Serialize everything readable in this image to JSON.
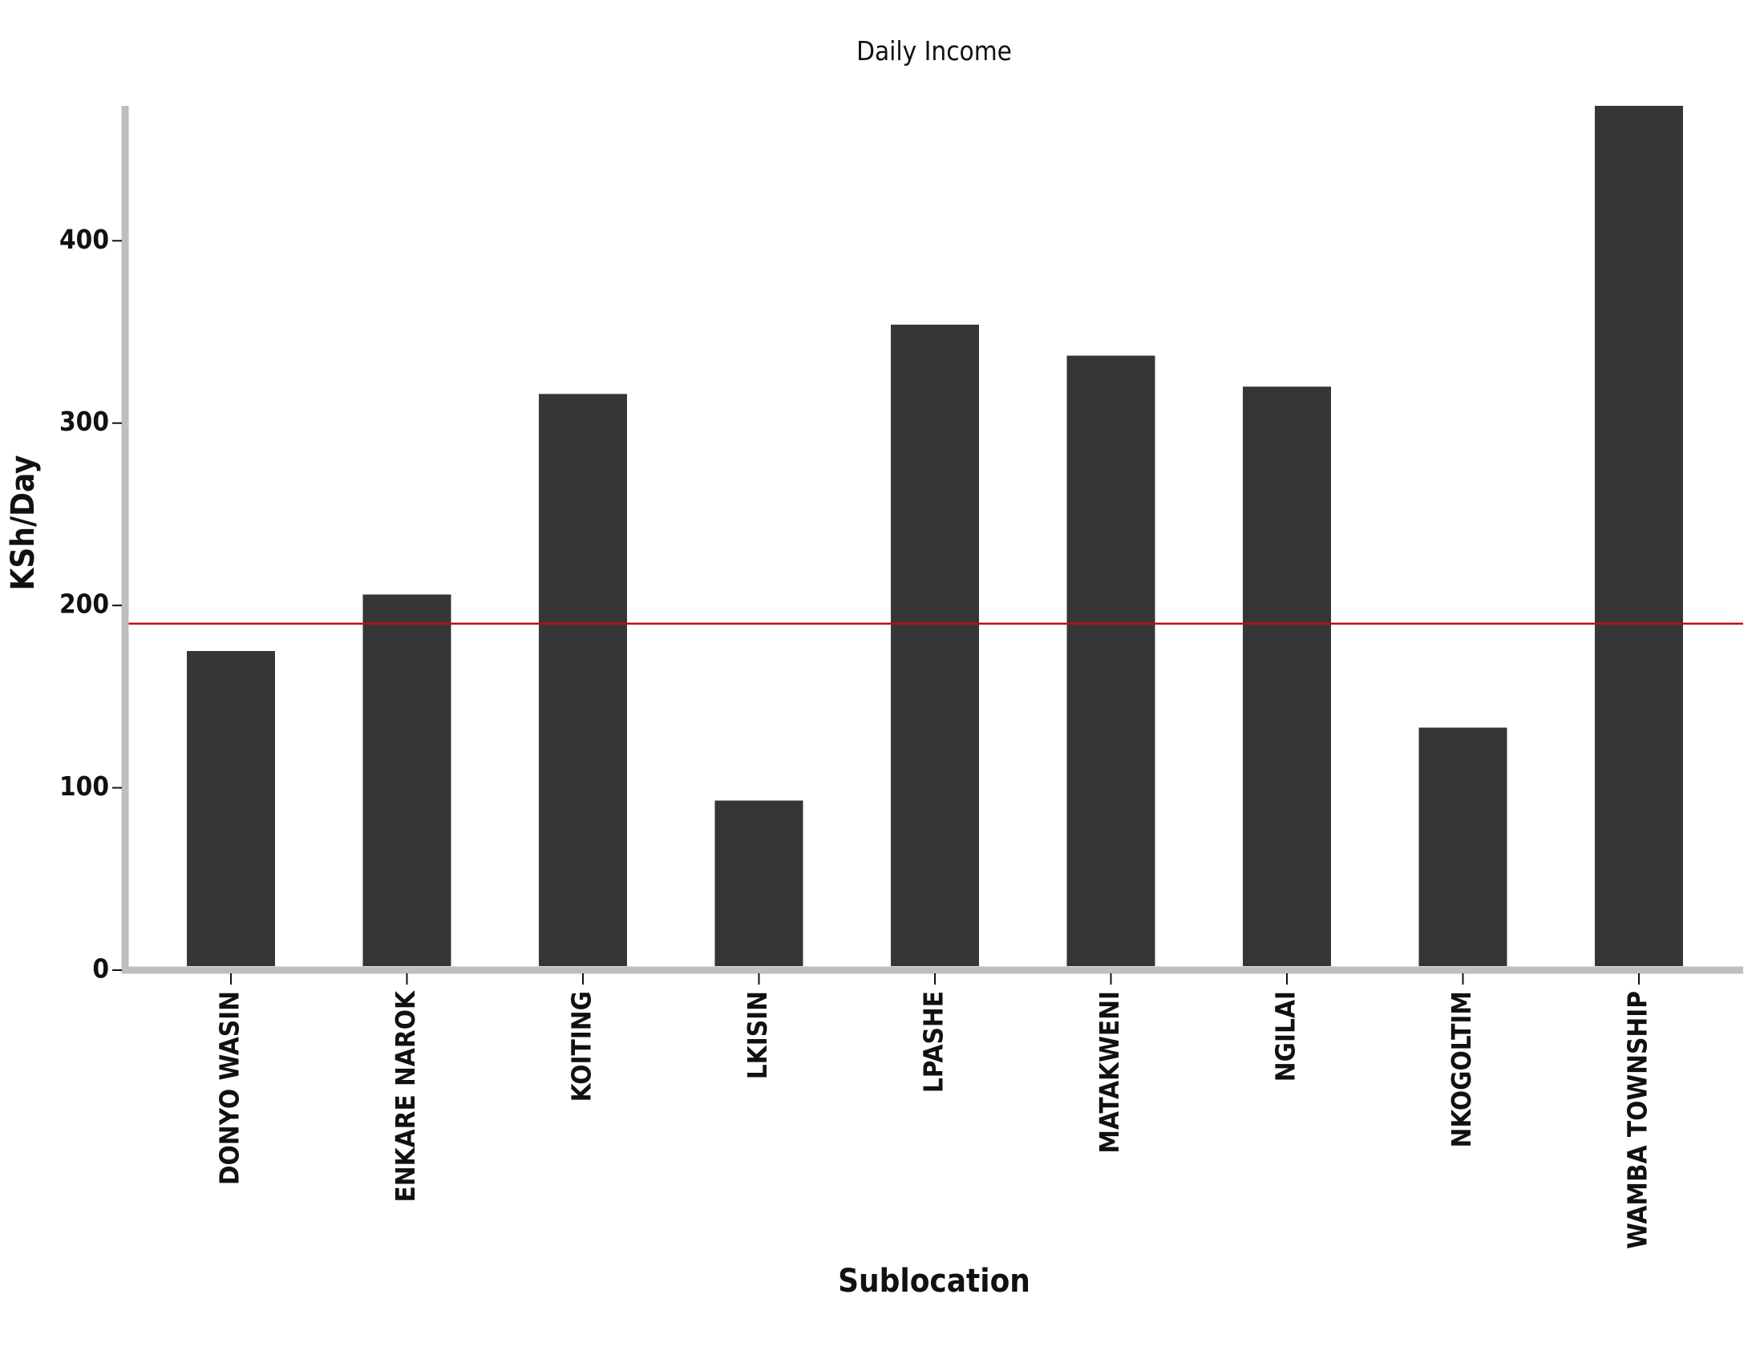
{
  "chart_data": {
    "type": "bar",
    "title": "Daily Income",
    "xlabel": "Sublocation",
    "ylabel": "KSh/Day",
    "categories": [
      "DONYO WASIN",
      "ENKARE NAROK",
      "KOITING",
      "LKISIN",
      "LPASHE",
      "MATAKWENI",
      "NGILAI",
      "NKOGOLTIM",
      "WAMBA TOWNSHIP"
    ],
    "values": [
      175,
      206,
      316,
      93,
      354,
      337,
      320,
      133,
      474
    ],
    "ylim": [
      0,
      474
    ],
    "yticks": [
      0,
      100,
      200,
      300,
      400
    ],
    "reference_line": 190,
    "grid": false,
    "colors": {
      "bar": "#363636",
      "reference_line": "#bb1111",
      "axis": "#bfbfbf"
    }
  }
}
